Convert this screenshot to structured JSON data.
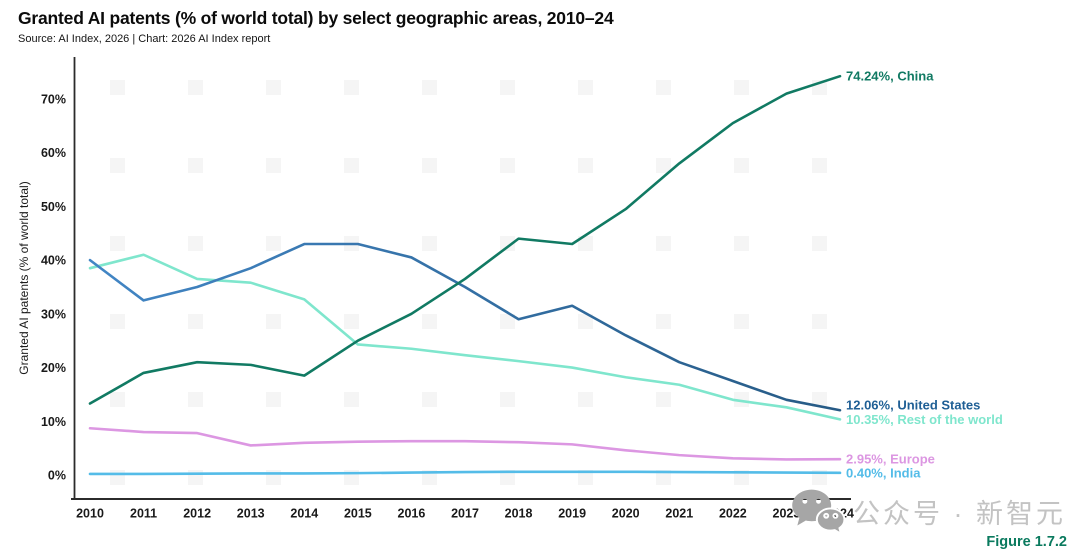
{
  "header": {
    "title": "Granted AI patents (% of world total) by select geographic areas, 2010–24",
    "source": "Source: AI Index, 2026 | Chart: 2026 AI Index report"
  },
  "chart_data": {
    "type": "line",
    "title": "Granted AI patents (% of world total) by select geographic areas, 2010–24",
    "xlabel": "",
    "ylabel": "Granted AI patents (% of world total)",
    "x": [
      2010,
      2011,
      2012,
      2013,
      2014,
      2015,
      2016,
      2017,
      2018,
      2019,
      2020,
      2021,
      2022,
      2023,
      2024
    ],
    "ylim": [
      0,
      75
    ],
    "yticks": [
      0,
      10,
      20,
      30,
      40,
      50,
      60,
      70
    ],
    "ytick_suffix": "%",
    "grid": false,
    "legend_position": "right-end-labels",
    "series": [
      {
        "name": "China",
        "color": "#117a63",
        "end_label": "74.24%, China",
        "end_value": "74.24%",
        "values": [
          13.3,
          19,
          21,
          20.5,
          18.5,
          25,
          30,
          36.5,
          44,
          43,
          49.5,
          58,
          65.5,
          71,
          74.24
        ]
      },
      {
        "name": "United States",
        "color": "#1f5f95",
        "gradient": [
          "#4286c5",
          "#265a85"
        ],
        "end_label": "12.06%, United States",
        "end_value": "12.06%",
        "label_dy": -5,
        "values": [
          40,
          32.5,
          35,
          38.5,
          43,
          43,
          40.5,
          35,
          29,
          31.5,
          26,
          21,
          17.5,
          14,
          12.06
        ]
      },
      {
        "name": "Rest of the world",
        "color": "#7fe6cd",
        "end_label": "10.35%, Rest of the world",
        "end_value": "10.35%",
        "values": [
          38.5,
          41,
          36.5,
          35.8,
          32.7,
          24.3,
          23.5,
          22.3,
          21.2,
          20,
          18.2,
          16.8,
          14,
          12.6,
          10.35
        ]
      },
      {
        "name": "Europe",
        "color": "#dc97e2",
        "end_label": "2.95%, Europe",
        "end_value": "2.95%",
        "values": [
          8.7,
          8,
          7.8,
          5.5,
          6,
          6.2,
          6.3,
          6.3,
          6.1,
          5.7,
          4.6,
          3.7,
          3.1,
          2.9,
          2.95
        ]
      },
      {
        "name": "India",
        "color": "#54bce8",
        "end_label": "0.40%, India",
        "end_value": "0.40%",
        "values": [
          0.2,
          0.2,
          0.25,
          0.3,
          0.3,
          0.35,
          0.45,
          0.55,
          0.6,
          0.6,
          0.6,
          0.55,
          0.5,
          0.45,
          0.4
        ]
      }
    ]
  },
  "footer": {
    "watermark_text": "公众号 · 新智元",
    "figure_label": "Figure 1.7.2"
  }
}
